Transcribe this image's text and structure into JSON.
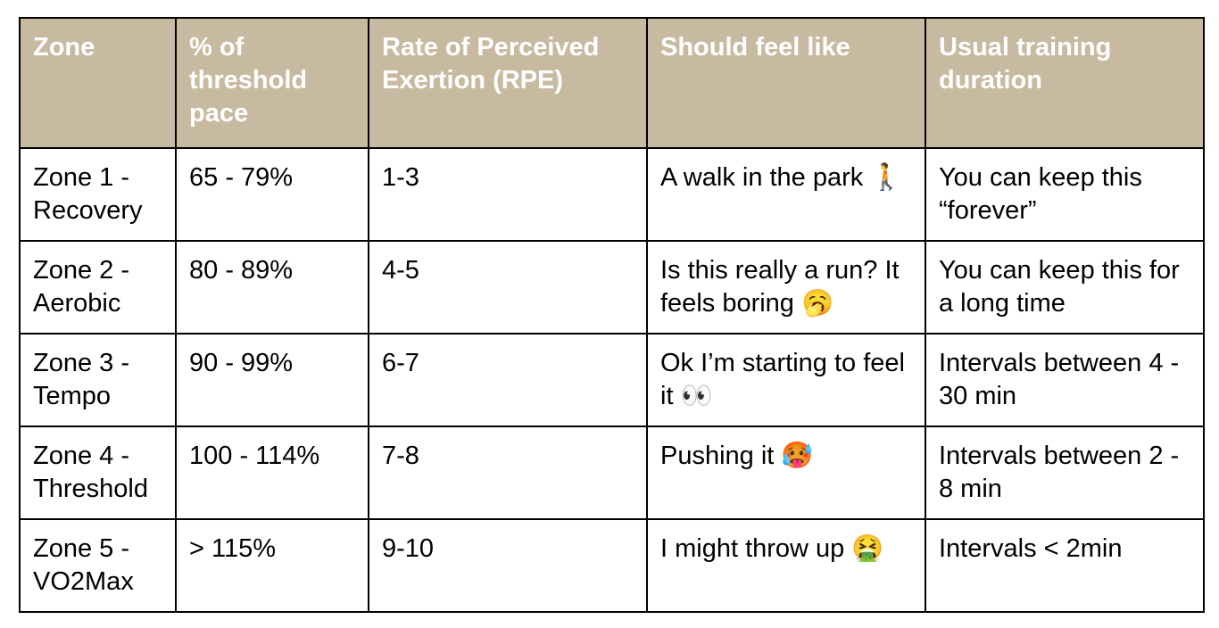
{
  "table": {
    "header": [
      "Zone",
      "% of threshold pace",
      "Rate of Perceived Exertion (RPE)",
      "Should feel like",
      "Usual training duration"
    ],
    "rows": [
      [
        "Zone 1 - Recovery",
        "65 - 79%",
        "1-3",
        "A walk in the park 🚶",
        "You can keep this “forever”"
      ],
      [
        "Zone 2 - Aerobic",
        "80 - 89%",
        "4-5",
        "Is this really a run? It feels boring 🥱",
        "You can keep this for a long time"
      ],
      [
        "Zone 3 - Tempo",
        "90 - 99%",
        "6-7",
        "Ok I’m starting to feel it 👀",
        "Intervals between 4 - 30 min"
      ],
      [
        "Zone 4 - Threshold",
        "100 - 114%",
        "7-8",
        "Pushing it 🥵",
        "Intervals between 2 - 8 min"
      ],
      [
        "Zone 5 - VO2Max",
        "> 115%",
        "9-10",
        "I might throw up 🤮",
        "Intervals < 2min"
      ]
    ]
  }
}
